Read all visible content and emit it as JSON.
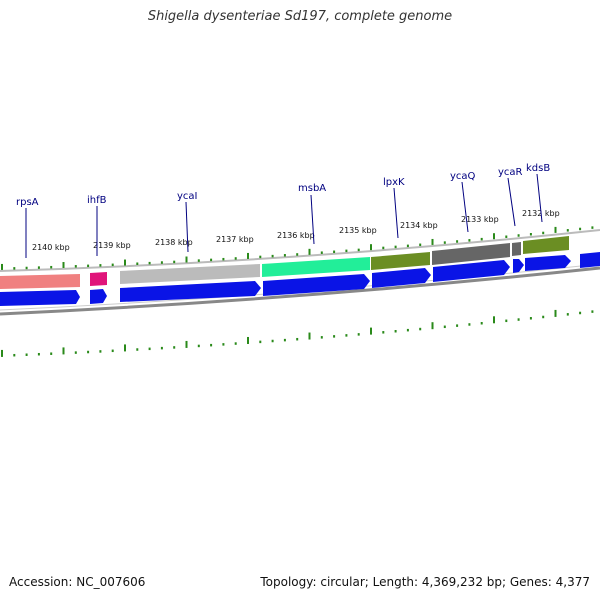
{
  "title": "Shigella dysenteriae Sd197, complete genome",
  "accession": "Accession: NC_007606",
  "summary": "Topology: circular; Length: 4,369,232 bp; Genes: 4,377",
  "colors": {
    "cds": "#0a14e6",
    "tick": "#2a8a1a",
    "gene_label": "#000080",
    "backbone": "#888888"
  },
  "scale_labels": [
    "2140 kbp",
    "2139 kbp",
    "2138 kbp",
    "2137 kbp",
    "2136 kbp",
    "2135 kbp",
    "2134 kbp",
    "2133 kbp",
    "2132 kbp"
  ],
  "genes": [
    {
      "name": "rpsA",
      "color": "#f08080"
    },
    {
      "name": "ihfB",
      "color": "#e0147a"
    },
    {
      "name": "ycaI",
      "color": "#bbbbbb"
    },
    {
      "name": "msbA",
      "color": "#22ee99"
    },
    {
      "name": "lpxK",
      "color": "#6b8e23"
    },
    {
      "name": "ycaQ",
      "color": "#666666"
    },
    {
      "name": "ycaR",
      "color": "#666666"
    },
    {
      "name": "kdsB",
      "color": "#6b8e23"
    }
  ]
}
